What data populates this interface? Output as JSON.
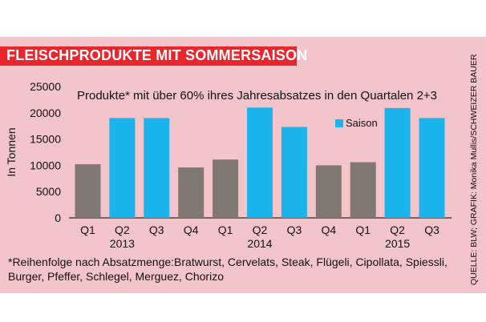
{
  "title": "FLEISCHPRODUKTE MIT SOMMERSAISON",
  "footnote": "*Reihenfolge nach Absatzmenge:Bratwurst, Cervelats, Steak, Flügeli, Cipollata, Spiessli, Burger, Pfeffer, Schlegel, Merguez, Chorizo",
  "source": "QUELLE: BLW; GRAFIK: Monika Mullis/SCHWEIZER BAUER",
  "colors": {
    "panel": "#f3c4c9",
    "title_bar": "#e8262c",
    "gray_bar": "#807875",
    "blue_bar": "#1cb4ec"
  },
  "chart_data": {
    "type": "bar",
    "title": "Produkte* mit über 60% ihres Jahresabsatzes in den Quartalen 2+3",
    "ylabel": "In Tonnen",
    "ylim": [
      0,
      25000
    ],
    "yticks": [
      0,
      5000,
      10000,
      15000,
      20000,
      25000
    ],
    "categories": [
      "Q1",
      "Q2",
      "Q3",
      "Q4",
      "Q1",
      "Q2",
      "Q3",
      "Q4",
      "Q1",
      "Q2",
      "Q3"
    ],
    "values": [
      10200,
      19000,
      19000,
      9600,
      11100,
      21000,
      17300,
      10000,
      10600,
      20900,
      19000
    ],
    "highlighted": [
      false,
      true,
      true,
      false,
      false,
      true,
      true,
      false,
      false,
      true,
      true
    ],
    "years": [
      {
        "label": "2013",
        "under": 1
      },
      {
        "label": "2014",
        "under": 5
      },
      {
        "label": "2015",
        "under": 9
      }
    ],
    "legend": {
      "label": "Saison",
      "placement": "top-right"
    },
    "grid": false
  }
}
